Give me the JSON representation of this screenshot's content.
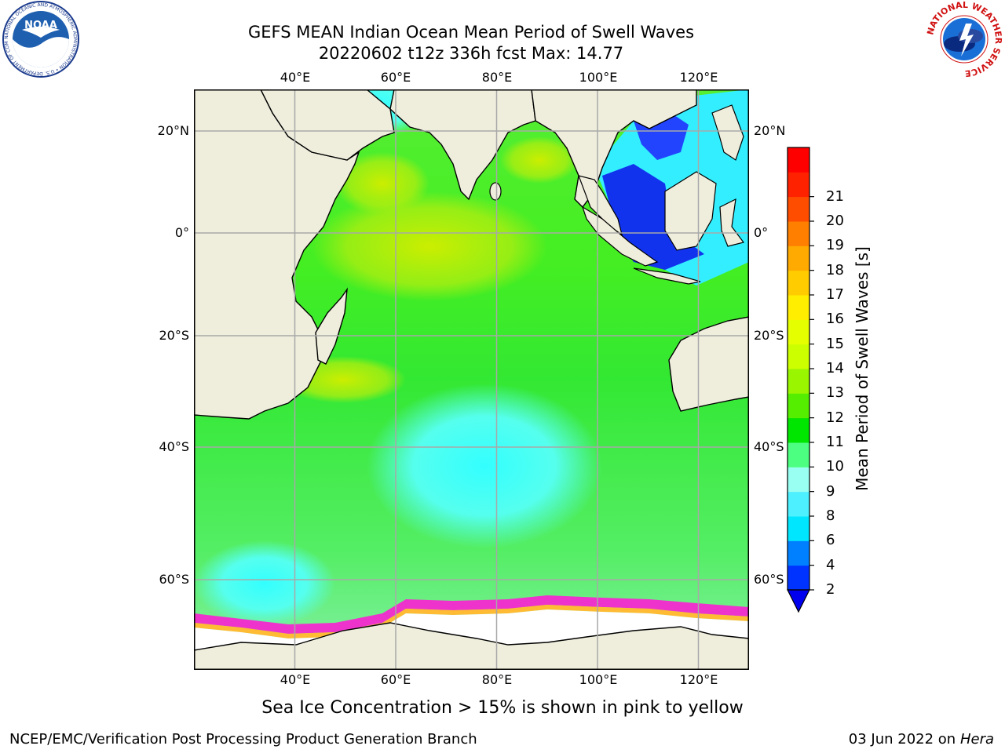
{
  "title": {
    "line1": "GEFS MEAN Indian Ocean Mean Period of Swell Waves",
    "line2": "20220602 t12z 336h fcst   Max: 14.77"
  },
  "map": {
    "region": "Indian Ocean",
    "lon_range": [
      20,
      130
    ],
    "lat_range": [
      -72,
      28
    ],
    "lon_labels": [
      "40°E",
      "60°E",
      "80°E",
      "100°E",
      "120°E"
    ],
    "lat_labels": [
      "20°N",
      "0°",
      "20°S",
      "40°S",
      "60°S"
    ]
  },
  "colorbar": {
    "label": "Mean Period of Swell Waves [s]",
    "ticks": [
      "2",
      "4",
      "6",
      "8",
      "9",
      "10",
      "11",
      "12",
      "13",
      "14",
      "15",
      "16",
      "17",
      "18",
      "19",
      "20",
      "21"
    ],
    "colors": [
      "#0033ff",
      "#0080ff",
      "#00e6ff",
      "#4df0ff",
      "#99fff2",
      "#4dff80",
      "#00e600",
      "#55ee00",
      "#99f500",
      "#ccff00",
      "#e6ff00",
      "#ffee00",
      "#ffcc00",
      "#ffaa00",
      "#ff8000",
      "#ff4d00",
      "#ff2200",
      "#ff0000"
    ],
    "extend_min_color": "#0000ee"
  },
  "footer": {
    "note": "Sea Ice Concentration > 15% is shown in pink to yellow",
    "credit": "NCEP/EMC/Verification Post Processing Product Generation Branch",
    "date": "03 Jun 2022 on",
    "host": "Hera"
  },
  "logos": {
    "noaa_text": "NOAA",
    "noaa_ring": "NATIONAL OCEANIC AND ATMOSPHERIC ADMINISTRATION • U.S. DEPARTMENT OF COMMERCE",
    "nws_ring": "NATIONAL WEATHER SERVICE"
  }
}
